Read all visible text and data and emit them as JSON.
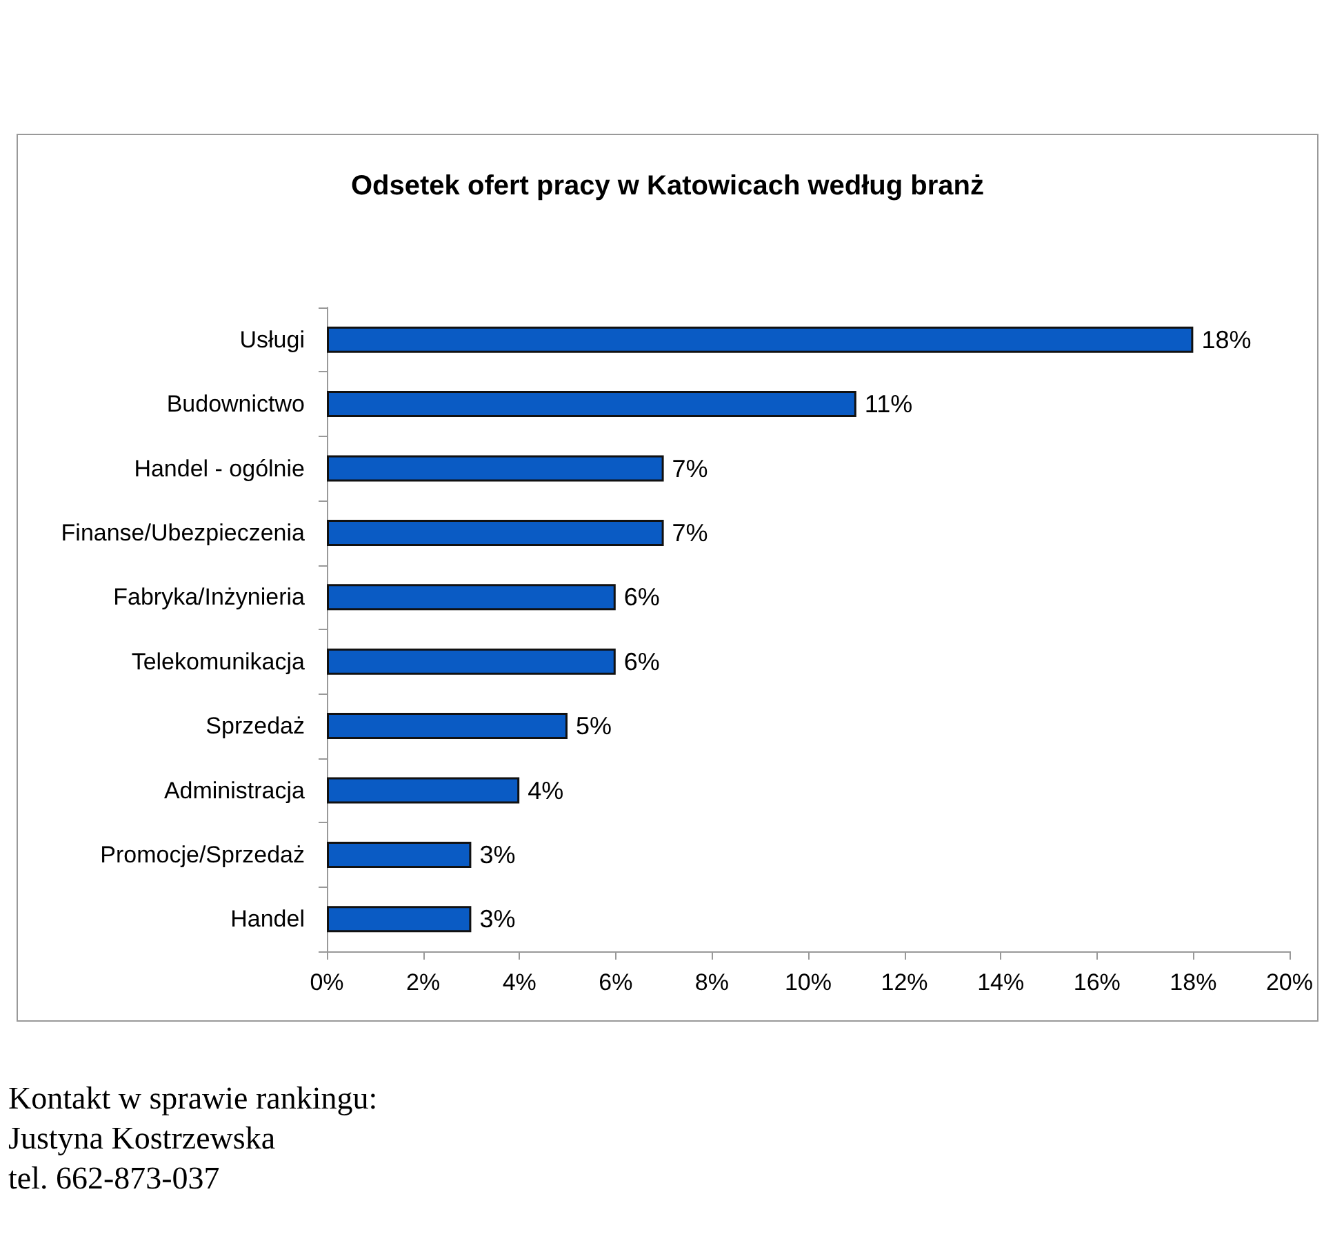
{
  "chart_data": {
    "type": "bar",
    "orientation": "horizontal",
    "title": "Odsetek ofert pracy w Katowicach według branż",
    "categories": [
      "Usługi",
      "Budownictwo",
      "Handel - ogólnie",
      "Finanse/Ubezpieczenia",
      "Fabryka/Inżynieria",
      "Telekomunikacja",
      "Sprzedaż",
      "Administracja",
      "Promocje/Sprzedaż",
      "Handel"
    ],
    "values": [
      18,
      11,
      7,
      7,
      6,
      6,
      5,
      4,
      3,
      3
    ],
    "value_labels": [
      "18%",
      "11%",
      "7%",
      "7%",
      "6%",
      "6%",
      "5%",
      "4%",
      "3%",
      "3%"
    ],
    "color": "#0a5bc4",
    "xlim": [
      0,
      20
    ],
    "xticks": [
      {
        "value": 0,
        "label": "0%"
      },
      {
        "value": 2,
        "label": "2%"
      },
      {
        "value": 4,
        "label": "4%"
      },
      {
        "value": 6,
        "label": "6%"
      },
      {
        "value": 8,
        "label": "8%"
      },
      {
        "value": 10,
        "label": "10%"
      },
      {
        "value": 12,
        "label": "12%"
      },
      {
        "value": 14,
        "label": "14%"
      },
      {
        "value": 16,
        "label": "16%"
      },
      {
        "value": 18,
        "label": "18%"
      },
      {
        "value": 20,
        "label": "20%"
      }
    ],
    "grid": false,
    "annotations": [
      "Kontakt w sprawie rankingu:",
      "Justyna Kostrzewska",
      "tel. 662-873-037"
    ]
  }
}
